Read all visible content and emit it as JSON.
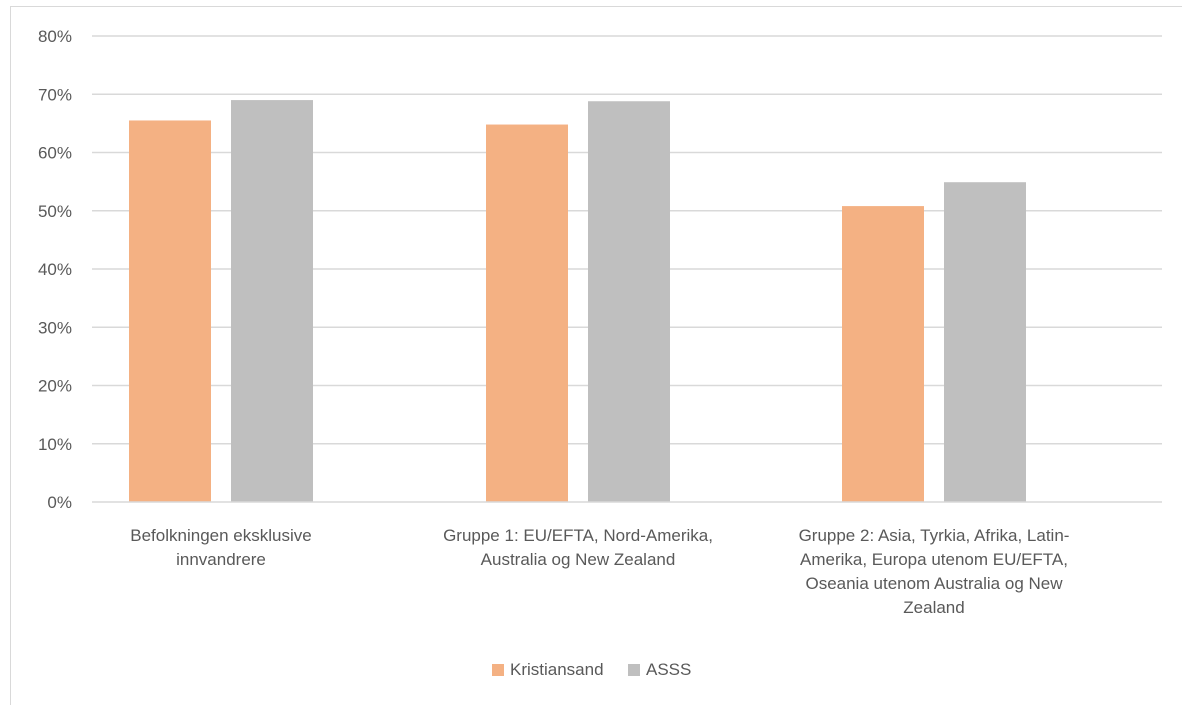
{
  "chart_data": {
    "type": "bar",
    "categories": [
      [
        "Befolkningen eksklusive",
        "innvandrere"
      ],
      [
        "Gruppe 1: EU/EFTA, Nord-Amerika,",
        "Australia og New Zealand"
      ],
      [
        "Gruppe 2: Asia, Tyrkia, Afrika, Latin-",
        "Amerika, Europa utenom EU/EFTA,",
        "Oseania utenom Australia og New",
        "Zealand"
      ]
    ],
    "series": [
      {
        "name": "Kristiansand",
        "color": "#f4b183",
        "values": [
          0.655,
          0.648,
          0.508
        ]
      },
      {
        "name": "ASSS",
        "color": "#bfbfbf",
        "values": [
          0.69,
          0.688,
          0.549
        ]
      }
    ],
    "ylim": [
      0,
      0.8
    ],
    "yticks": [
      0,
      0.1,
      0.2,
      0.3,
      0.4,
      0.5,
      0.6,
      0.7,
      0.8
    ],
    "ytick_labels": [
      "0%",
      "10%",
      "20%",
      "30%",
      "40%",
      "50%",
      "60%",
      "70%",
      "80%"
    ],
    "grid": true,
    "gridline_color": "#d9d9d9",
    "legend_position": "bottom",
    "title": "",
    "xlabel": "",
    "ylabel": ""
  }
}
